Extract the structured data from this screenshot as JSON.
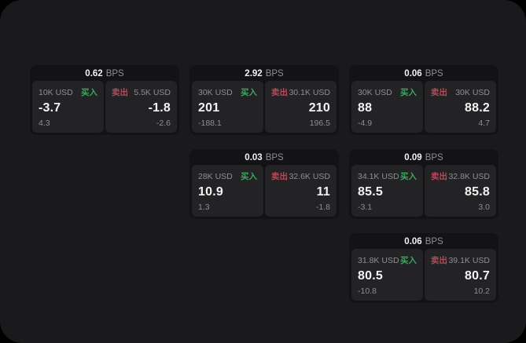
{
  "theme": {
    "bg": "#000000",
    "surface": "#1a1a1c",
    "card": "#131315",
    "panel": "#232326",
    "text_primary": "#f2f2f3",
    "text_secondary": "#8e8e93",
    "buy": "#3aa95c",
    "sell": "#bb4757"
  },
  "labels": {
    "buy": "买入",
    "sell": "卖出",
    "bps_unit": "BPS"
  },
  "cards": [
    {
      "bps": "0.62",
      "buy": {
        "size": "10K USD",
        "value": "-3.7",
        "delta": "4.3"
      },
      "sell": {
        "size": "5.5K USD",
        "value": "-1.8",
        "delta": "-2.6"
      }
    },
    {
      "bps": "2.92",
      "buy": {
        "size": "30K USD",
        "value": "201",
        "delta": "-188.1"
      },
      "sell": {
        "size": "30.1K USD",
        "value": "210",
        "delta": "196.5"
      }
    },
    {
      "bps": "0.06",
      "buy": {
        "size": "30K USD",
        "value": "88",
        "delta": "-4.9"
      },
      "sell": {
        "size": "30K USD",
        "value": "88.2",
        "delta": "4.7"
      }
    },
    {
      "bps": "0.03",
      "buy": {
        "size": "28K USD",
        "value": "10.9",
        "delta": "1.3"
      },
      "sell": {
        "size": "32.6K USD",
        "value": "11",
        "delta": "-1.8"
      }
    },
    {
      "bps": "0.09",
      "buy": {
        "size": "34.1K USD",
        "value": "85.5",
        "delta": "-3.1"
      },
      "sell": {
        "size": "32.8K USD",
        "value": "85.8",
        "delta": "3.0"
      }
    },
    {
      "bps": "0.06",
      "buy": {
        "size": "31.8K USD",
        "value": "80.5",
        "delta": "-10.8"
      },
      "sell": {
        "size": "39.1K USD",
        "value": "80.7",
        "delta": "10.2"
      }
    }
  ]
}
